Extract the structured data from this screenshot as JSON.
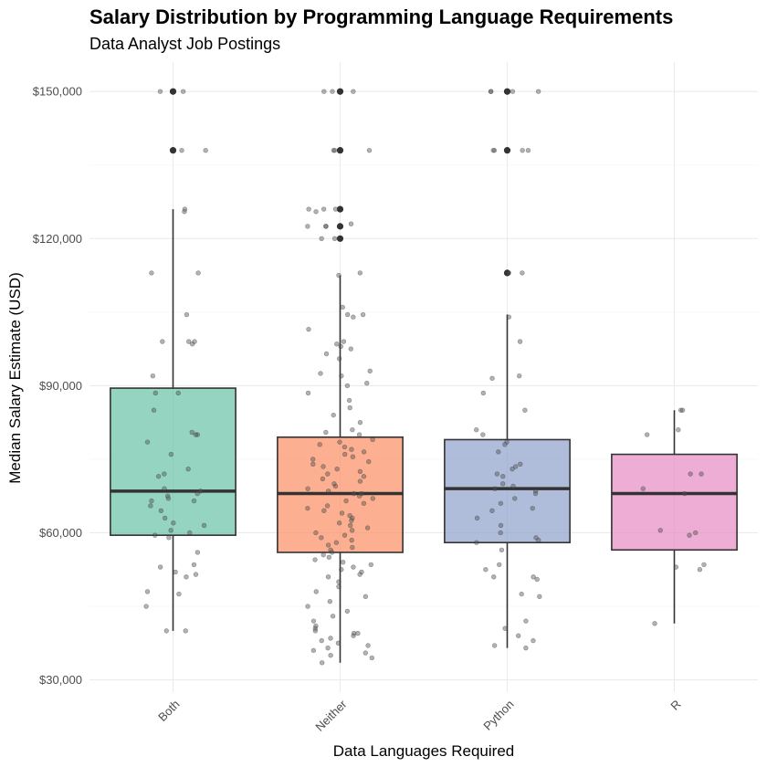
{
  "chart_data": {
    "type": "boxplot",
    "title": "Salary Distribution by Programming Language Requirements",
    "subtitle": "Data Analyst Job Postings",
    "xlabel": "Data Languages Required",
    "ylabel": "Median Salary Estimate (USD)",
    "ylim": [
      27500,
      156000
    ],
    "yticks": [
      30000,
      60000,
      90000,
      120000,
      150000
    ],
    "ytick_labels": [
      "$30,000",
      "$60,000",
      "$90,000",
      "$120,000",
      "$150,000"
    ],
    "categories": [
      "Both",
      "Neither",
      "Python",
      "R"
    ],
    "colors": {
      "Both": "#66c2a5",
      "Neither": "#fc8d62",
      "Python": "#8da0cb",
      "R": "#e78ac3"
    },
    "grid": true,
    "legend": "none",
    "boxes": [
      {
        "category": "Both",
        "q1": 59500,
        "median": 68500,
        "q3": 89500,
        "whisker_low": 40000,
        "whisker_high": 126000,
        "outliers": [
          138000,
          150000
        ],
        "points": [
          150000,
          150000,
          138000,
          138000,
          126000,
          125500,
          113000,
          113000,
          104500,
          99000,
          99000,
          99000,
          98500,
          92000,
          88500,
          88500,
          85000,
          80500,
          80000,
          80000,
          78500,
          76000,
          73000,
          72000,
          71500,
          69000,
          68500,
          68000,
          67500,
          67000,
          66500,
          66500,
          65500,
          64500,
          63000,
          62000,
          61500,
          60500,
          60000,
          59500,
          59000,
          56000,
          53500,
          53000,
          52000,
          51500,
          51000,
          48000,
          47500,
          45000,
          40000,
          40000
        ]
      },
      {
        "category": "Neither",
        "q1": 56000,
        "median": 68000,
        "q3": 79500,
        "whisker_low": 33500,
        "whisker_high": 112500,
        "outliers": [
          120000,
          122500,
          126000,
          138000,
          150000
        ],
        "points": [
          150000,
          150000,
          150000,
          138000,
          138000,
          138000,
          126000,
          126000,
          126000,
          125500,
          123000,
          122500,
          122500,
          122500,
          120000,
          120000,
          113000,
          112500,
          106000,
          104500,
          104500,
          104000,
          101500,
          99000,
          98500,
          98000,
          97500,
          96500,
          95500,
          93000,
          92500,
          92000,
          90500,
          90000,
          88500,
          87000,
          85500,
          84000,
          82500,
          81000,
          80500,
          80000,
          79000,
          78500,
          78000,
          77500,
          77000,
          76500,
          76000,
          75500,
          75000,
          74500,
          74000,
          73500,
          73000,
          72500,
          72000,
          71500,
          71000,
          70500,
          70000,
          69500,
          69000,
          68500,
          68000,
          68000,
          67500,
          67000,
          66500,
          66000,
          65500,
          65000,
          64500,
          64000,
          63500,
          63000,
          62500,
          62000,
          61500,
          61000,
          60500,
          60000,
          59500,
          59000,
          58500,
          58000,
          57500,
          57000,
          56500,
          56000,
          55500,
          55000,
          54500,
          54000,
          53500,
          53000,
          52500,
          52000,
          51500,
          51000,
          50000,
          49000,
          48000,
          47000,
          46000,
          45000,
          44000,
          43000,
          42000,
          41000,
          40500,
          40000,
          39500,
          39500,
          39000,
          38500,
          38000,
          37500,
          37000,
          36500,
          36000,
          35500,
          35000,
          34500,
          33500
        ]
      },
      {
        "category": "Python",
        "q1": 58000,
        "median": 69000,
        "q3": 79000,
        "whisker_low": 36500,
        "whisker_high": 104500,
        "outliers": [
          113000,
          138000,
          150000
        ],
        "points": [
          150000,
          150000,
          150000,
          150000,
          138000,
          138000,
          138000,
          138000,
          113000,
          113000,
          104000,
          99000,
          92000,
          91500,
          88500,
          85000,
          81000,
          80000,
          78500,
          78000,
          76500,
          74000,
          73500,
          73000,
          72000,
          71500,
          70000,
          69500,
          69000,
          68500,
          68000,
          67000,
          66000,
          65000,
          64500,
          63000,
          61500,
          60000,
          59000,
          58500,
          58000,
          56500,
          53500,
          52500,
          51000,
          51000,
          50500,
          47500,
          47000,
          42000,
          40500,
          39000,
          38000,
          37000,
          36500
        ]
      },
      {
        "category": "R",
        "q1": 56500,
        "median": 68000,
        "q3": 76000,
        "whisker_low": 41500,
        "whisker_high": 85000,
        "outliers": [],
        "points": [
          85000,
          85000,
          81000,
          80000,
          72000,
          72000,
          69000,
          68000,
          60500,
          60000,
          59500,
          53500,
          53000,
          52500,
          41500
        ]
      }
    ]
  }
}
